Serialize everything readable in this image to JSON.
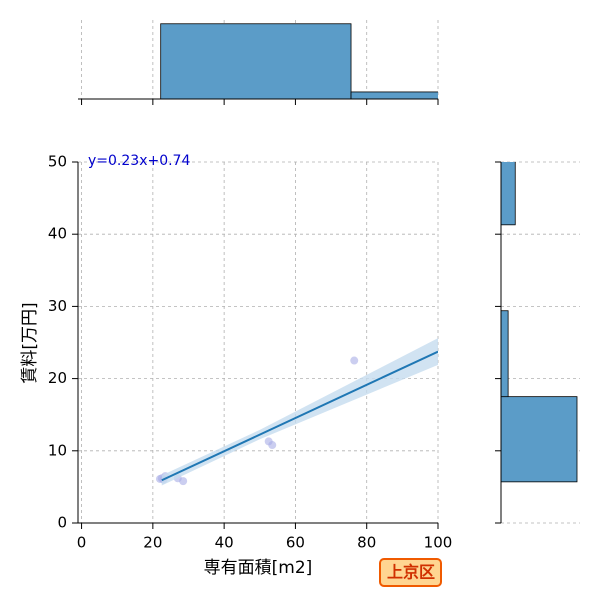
{
  "chart_data": [
    {
      "type": "scatter",
      "xlabel": "専有面積[m2]",
      "ylabel": "賃料[万円]",
      "annotation": "y=0.23x+0.74",
      "annotation_color": "#0000cc",
      "badge": "上京区",
      "xlim": [
        -1,
        100
      ],
      "ylim": [
        0,
        50
      ],
      "xticks": [
        0,
        20,
        40,
        60,
        80,
        100
      ],
      "yticks": [
        0,
        10,
        20,
        30,
        40,
        50
      ],
      "grid": true,
      "series": [
        {
          "type": "scatter",
          "color": "#a9aee6",
          "x": [
            22,
            22.5,
            23,
            23.5,
            27,
            28.5,
            52.5,
            53.5,
            76.5
          ],
          "values": [
            6.1,
            6.2,
            6.0,
            6.5,
            6.2,
            5.8,
            11.3,
            10.8,
            22.5
          ]
        },
        {
          "type": "line",
          "color": "#1f77b4",
          "band_color": "#c6dcef",
          "x": [
            22.5,
            50,
            100
          ],
          "values": [
            5.92,
            12.24,
            23.74
          ],
          "lower": [
            5.2,
            11.6,
            21.9
          ],
          "upper": [
            6.6,
            12.9,
            25.6
          ]
        }
      ]
    },
    {
      "type": "histogram",
      "orientation": "vertical",
      "color": "#5b9cc8",
      "bins": [
        22.2,
        75.6,
        129
      ],
      "values": [
        8,
        0.75
      ],
      "xlim": [
        -1,
        100
      ],
      "ylim": [
        0,
        8.4
      ],
      "xticks": [
        0,
        20,
        40,
        60,
        80,
        100
      ],
      "grid": true
    },
    {
      "type": "histogram",
      "orientation": "horizontal",
      "color": "#5b9cc8",
      "bins": [
        5.7,
        17.5,
        29.4,
        41.3,
        53.1
      ],
      "values": [
        8,
        0.75,
        0,
        1.5
      ],
      "xlim": [
        0,
        8
      ],
      "ylim": [
        0,
        50
      ],
      "yticks": [
        0,
        10,
        20,
        30,
        40,
        50
      ],
      "grid": true
    }
  ]
}
